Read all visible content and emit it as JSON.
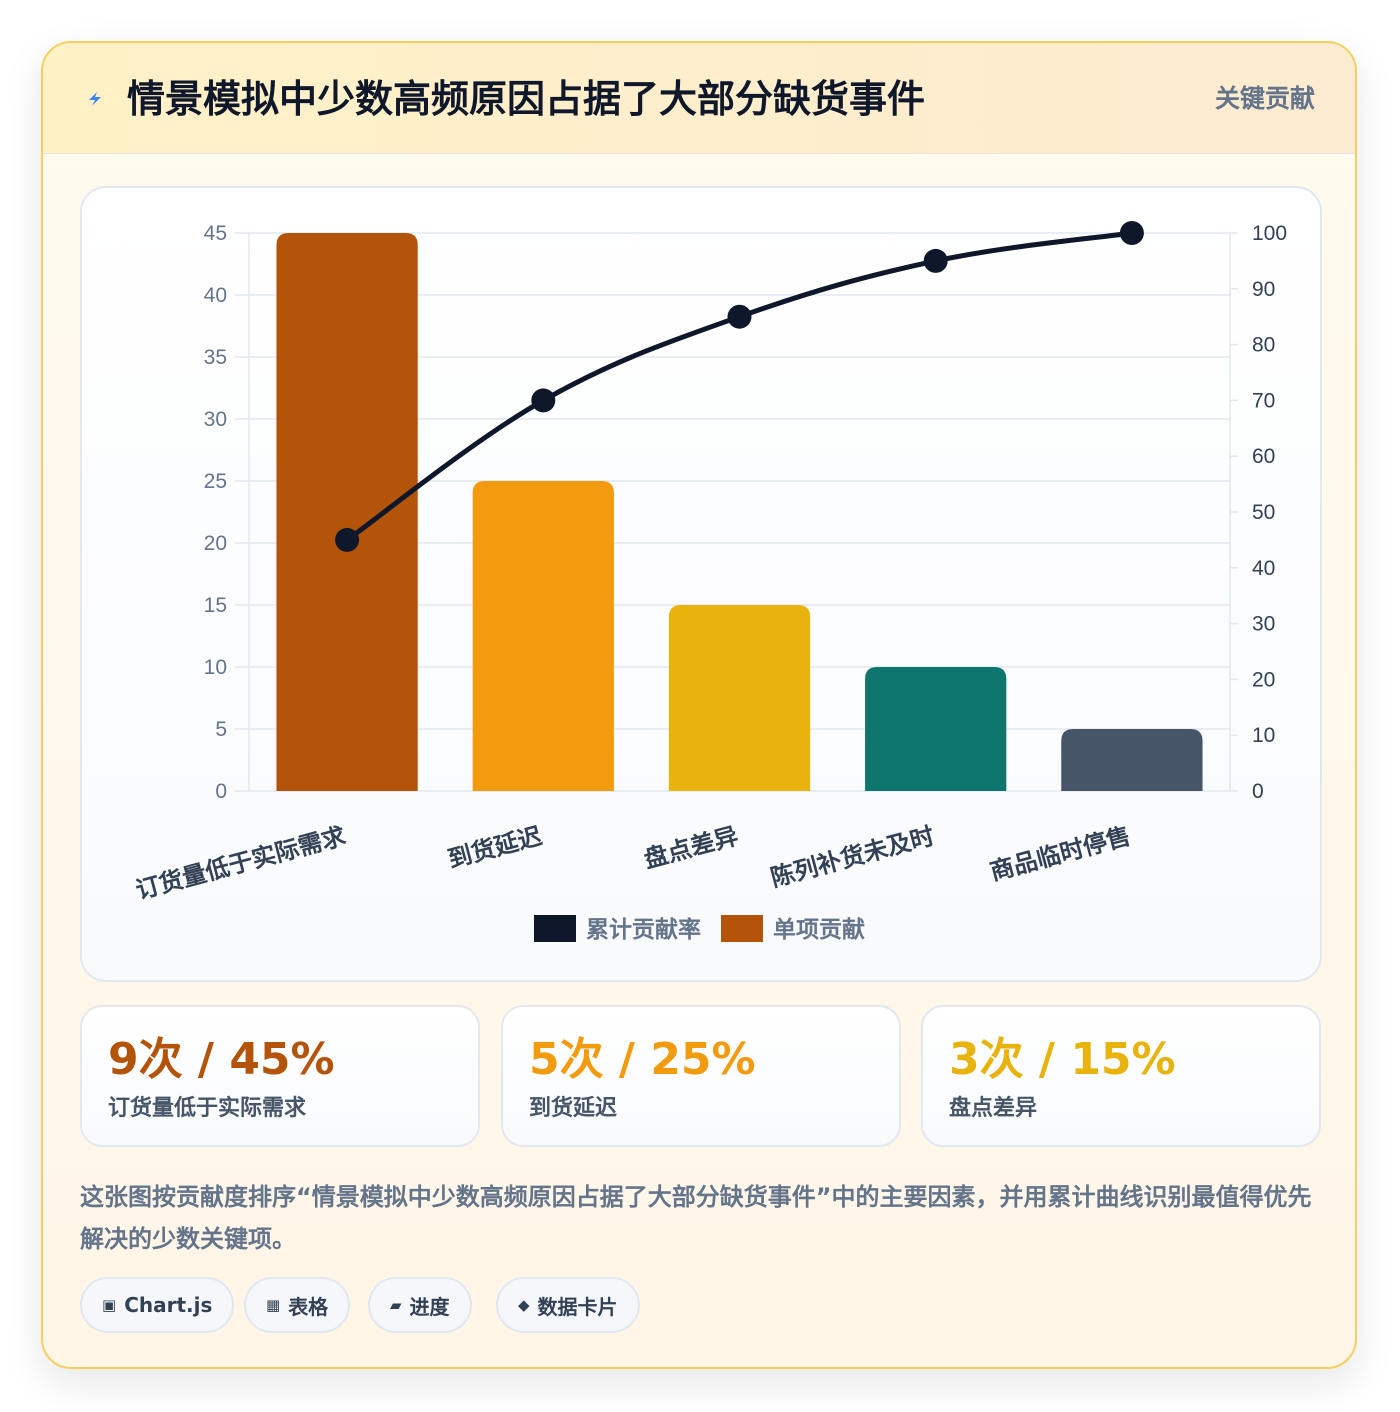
{
  "header": {
    "title": "情景模拟中少数高频原因占据了大部分缺货事件",
    "tag": "关键贡献",
    "icon": "lightning-icon"
  },
  "chart_data": {
    "type": "bar",
    "title": "",
    "categories": [
      "订货量低于实际需求",
      "到货延迟",
      "盘点差异",
      "陈列补货未及时",
      "商品临时停售"
    ],
    "series": [
      {
        "name": "单项贡献",
        "type": "bar",
        "axis": "left",
        "values": [
          45,
          25,
          15,
          10,
          5
        ],
        "colors": [
          "#b4530a",
          "#f29b0e",
          "#e7b30c",
          "#0f766e",
          "#475569"
        ]
      },
      {
        "name": "累计贡献率",
        "type": "line",
        "axis": "right",
        "values": [
          45,
          70,
          85,
          95,
          100
        ],
        "color": "#0f172a"
      }
    ],
    "y_left": {
      "min": 0,
      "max": 45,
      "step": 5
    },
    "y_right": {
      "min": 0,
      "max": 100,
      "step": 10
    },
    "legend": {
      "position": "bottom",
      "items": [
        {
          "label": "累计贡献率",
          "color": "#0f172a"
        },
        {
          "label": "单项贡献",
          "color": "#b4530a"
        }
      ]
    },
    "grid": true
  },
  "stats": [
    {
      "value": "9次 / 45%",
      "label": "订货量低于实际需求",
      "color": "#b4530a"
    },
    {
      "value": "5次 / 25%",
      "label": "到货延迟",
      "color": "#f29b0e"
    },
    {
      "value": "3次 / 15%",
      "label": "盘点差异",
      "color": "#e7b30c"
    }
  ],
  "description": "这张图按贡献度排序“情景模拟中少数高频原因占据了大部分缺货事件”中的主要因素，并用累计曲线识别最值得优先解决的少数关键项。",
  "chips": [
    {
      "icon": "▣",
      "label": "Chart.js"
    },
    {
      "icon": "▦",
      "label": "表格"
    },
    {
      "icon": "▰",
      "label": "进度"
    },
    {
      "icon": "◆",
      "label": "数据卡片"
    }
  ]
}
